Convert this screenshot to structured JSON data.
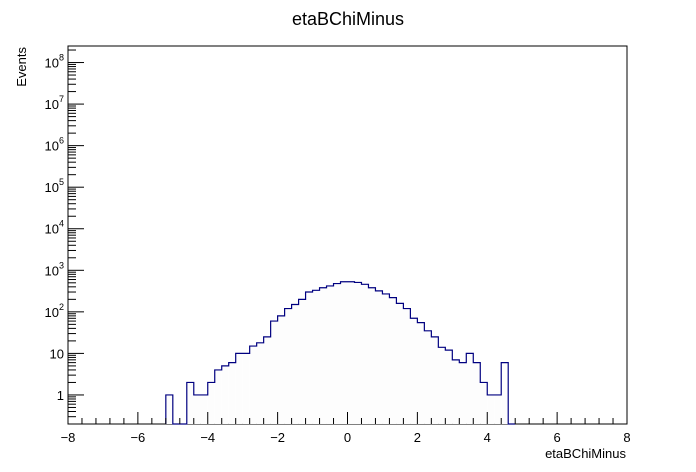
{
  "chart_data": {
    "type": "histogram",
    "title": "etaBChiMinus",
    "xlabel": "etaBChiMinus",
    "ylabel": "Events",
    "xlim": [
      -8,
      8
    ],
    "ylim": [
      0.2,
      250000000
    ],
    "yscale": "log",
    "bin_width": 0.2,
    "grid": false,
    "legend": "none",
    "line_color": "#000080",
    "fill_color": "#fdfdfd",
    "x_ticks": [
      "−8",
      "−6",
      "−4",
      "−2",
      "0",
      "2",
      "4",
      "6",
      "8"
    ],
    "y_ticks": [
      {
        "base": "1",
        "exp": ""
      },
      {
        "base": "10",
        "exp": ""
      },
      {
        "base": "10",
        "exp": "2"
      },
      {
        "base": "10",
        "exp": "3"
      },
      {
        "base": "10",
        "exp": "4"
      },
      {
        "base": "10",
        "exp": "5"
      },
      {
        "base": "10",
        "exp": "6"
      },
      {
        "base": "10",
        "exp": "7"
      },
      {
        "base": "10",
        "exp": "8"
      }
    ],
    "bins": [
      [
        -5.2,
        1
      ],
      [
        -5.0,
        0
      ],
      [
        -4.8,
        0
      ],
      [
        -4.6,
        2
      ],
      [
        -4.4,
        1
      ],
      [
        -4.2,
        1
      ],
      [
        -4.0,
        2
      ],
      [
        -3.8,
        4
      ],
      [
        -3.6,
        5
      ],
      [
        -3.4,
        6
      ],
      [
        -3.2,
        10
      ],
      [
        -3.0,
        10
      ],
      [
        -2.8,
        15
      ],
      [
        -2.6,
        18
      ],
      [
        -2.4,
        25
      ],
      [
        -2.2,
        60
      ],
      [
        -2.0,
        80
      ],
      [
        -1.8,
        120
      ],
      [
        -1.6,
        150
      ],
      [
        -1.4,
        200
      ],
      [
        -1.2,
        300
      ],
      [
        -1.0,
        330
      ],
      [
        -0.8,
        380
      ],
      [
        -0.6,
        420
      ],
      [
        -0.4,
        480
      ],
      [
        -0.2,
        530
      ],
      [
        0.0,
        530
      ],
      [
        0.2,
        510
      ],
      [
        0.4,
        460
      ],
      [
        0.6,
        380
      ],
      [
        0.8,
        320
      ],
      [
        1.0,
        270
      ],
      [
        1.2,
        220
      ],
      [
        1.4,
        160
      ],
      [
        1.6,
        120
      ],
      [
        1.8,
        70
      ],
      [
        2.0,
        55
      ],
      [
        2.2,
        35
      ],
      [
        2.4,
        25
      ],
      [
        2.6,
        14
      ],
      [
        2.8,
        12
      ],
      [
        3.0,
        7
      ],
      [
        3.2,
        6
      ],
      [
        3.4,
        10
      ],
      [
        3.6,
        6
      ],
      [
        3.8,
        2
      ],
      [
        4.0,
        1
      ],
      [
        4.2,
        1
      ],
      [
        4.4,
        6
      ],
      [
        4.6,
        0
      ]
    ]
  }
}
